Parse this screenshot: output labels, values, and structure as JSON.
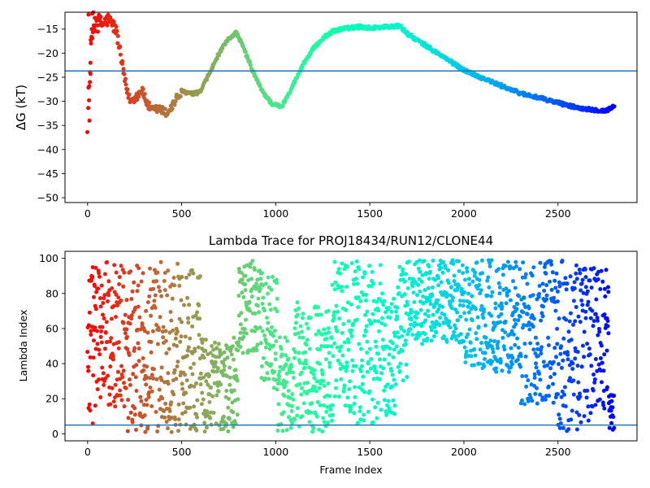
{
  "chart_data": [
    {
      "type": "scatter",
      "title": "",
      "xlabel": "",
      "ylabel": "ΔG (kT)",
      "xlim": [
        -120,
        2920
      ],
      "ylim": [
        -51,
        -11.5
      ],
      "xticks": [
        0,
        500,
        1000,
        1500,
        2000,
        2500
      ],
      "yticks": [
        -50,
        -45,
        -40,
        -35,
        -30,
        -25,
        -20,
        -15
      ],
      "ytick_labels": [
        "−50",
        "−45",
        "−40",
        "−35",
        "−30",
        "−25",
        "−20",
        "−15"
      ],
      "hline": -23.7,
      "hline_color": "#1f77b4",
      "colormap": "rainbow (red at frame 0 → violet at last frame)",
      "n_frames": 2800,
      "trajectory_anchors": [
        [
          0,
          -34
        ],
        [
          10,
          -26
        ],
        [
          20,
          -18
        ],
        [
          30,
          -14
        ],
        [
          50,
          -13
        ],
        [
          80,
          -14
        ],
        [
          110,
          -13
        ],
        [
          150,
          -15
        ],
        [
          170,
          -19
        ],
        [
          190,
          -24
        ],
        [
          210,
          -28
        ],
        [
          230,
          -30
        ],
        [
          260,
          -29
        ],
        [
          290,
          -27.5
        ],
        [
          310,
          -30
        ],
        [
          340,
          -32
        ],
        [
          380,
          -31.5
        ],
        [
          420,
          -32.5
        ],
        [
          450,
          -31
        ],
        [
          480,
          -29
        ],
        [
          510,
          -28
        ],
        [
          560,
          -28.5
        ],
        [
          600,
          -28
        ],
        [
          650,
          -24
        ],
        [
          700,
          -20
        ],
        [
          750,
          -17
        ],
        [
          790,
          -15.7
        ],
        [
          830,
          -19
        ],
        [
          880,
          -24
        ],
        [
          930,
          -28
        ],
        [
          980,
          -30.5
        ],
        [
          1030,
          -31.2
        ],
        [
          1060,
          -29
        ],
        [
          1100,
          -26
        ],
        [
          1150,
          -22
        ],
        [
          1200,
          -19
        ],
        [
          1250,
          -17
        ],
        [
          1300,
          -15.5
        ],
        [
          1350,
          -15
        ],
        [
          1400,
          -14.7
        ],
        [
          1450,
          -14.5
        ],
        [
          1500,
          -14.8
        ],
        [
          1550,
          -14.6
        ],
        [
          1600,
          -14.5
        ],
        [
          1660,
          -14.4
        ],
        [
          1700,
          -16
        ],
        [
          1800,
          -18.5
        ],
        [
          1900,
          -21
        ],
        [
          2000,
          -23.5
        ],
        [
          2100,
          -25.2
        ],
        [
          2200,
          -26.8
        ],
        [
          2300,
          -28.3
        ],
        [
          2400,
          -29.3
        ],
        [
          2500,
          -30.3
        ],
        [
          2600,
          -31.3
        ],
        [
          2700,
          -31.8
        ],
        [
          2750,
          -32
        ],
        [
          2780,
          -31.5
        ],
        [
          2800,
          -30.8
        ]
      ]
    },
    {
      "type": "scatter",
      "title": "Lambda Trace for PROJ18434/RUN12/CLONE44",
      "xlabel": "Frame Index",
      "ylabel": "Lambda Index",
      "xlim": [
        -120,
        2920
      ],
      "ylim": [
        -4,
        104
      ],
      "xticks": [
        0,
        500,
        1000,
        1500,
        2000,
        2500
      ],
      "yticks": [
        0,
        20,
        40,
        60,
        80,
        100
      ],
      "hline": 5,
      "hline_color": "#1f77b4",
      "colormap": "rainbow (red at frame 0 → violet at last frame)",
      "n_frames": 2800,
      "density_bands": [
        [
          0,
          50,
          5,
          98
        ],
        [
          50,
          200,
          15,
          98
        ],
        [
          200,
          500,
          1,
          98
        ],
        [
          500,
          600,
          1,
          98
        ],
        [
          600,
          800,
          1,
          55
        ],
        [
          800,
          920,
          45,
          99
        ],
        [
          920,
          1010,
          25,
          92
        ],
        [
          1010,
          1100,
          1,
          55
        ],
        [
          1100,
          1300,
          1,
          75
        ],
        [
          1300,
          1420,
          10,
          99
        ],
        [
          1420,
          1560,
          5,
          99
        ],
        [
          1560,
          1640,
          10,
          80
        ],
        [
          1640,
          1700,
          30,
          99
        ],
        [
          1700,
          2000,
          50,
          99
        ],
        [
          2000,
          2300,
          35,
          99
        ],
        [
          2300,
          2500,
          15,
          99
        ],
        [
          2500,
          2700,
          1,
          99
        ],
        [
          2700,
          2770,
          10,
          95
        ],
        [
          2770,
          2800,
          2,
          25
        ]
      ]
    }
  ]
}
